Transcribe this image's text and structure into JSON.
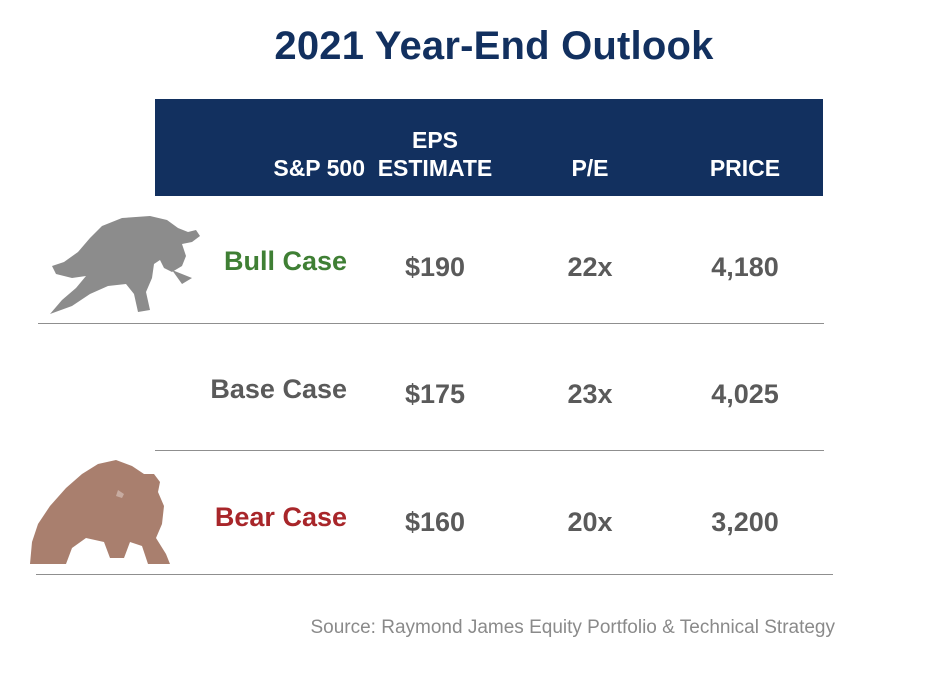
{
  "title": "2021 Year-End Outlook",
  "chart_data": {
    "type": "table",
    "columns": [
      "S&P 500",
      "EPS ESTIMATE",
      "P/E",
      "PRICE"
    ],
    "column_lines": {
      "eps": [
        "EPS",
        "ESTIMATE"
      ]
    },
    "rows": [
      {
        "case": "Bull Case",
        "eps": "$190",
        "pe": "22x",
        "price": "4,180",
        "label_color": "#3f7f34",
        "icon": "bull-icon"
      },
      {
        "case": "Base Case",
        "eps": "$175",
        "pe": "23x",
        "price": "4,025",
        "label_color": "#5a5a5a",
        "icon": null
      },
      {
        "case": "Bear Case",
        "eps": "$160",
        "pe": "20x",
        "price": "3,200",
        "label_color": "#a8262a",
        "icon": "bear-icon"
      }
    ]
  },
  "source": "Source: Raymond James Equity Portfolio & Technical Strategy",
  "colors": {
    "header_bg": "#12305f",
    "value_text": "#5a5a5a",
    "bull_icon": "#8c8c8c",
    "bear_icon": "#a97f6e"
  }
}
